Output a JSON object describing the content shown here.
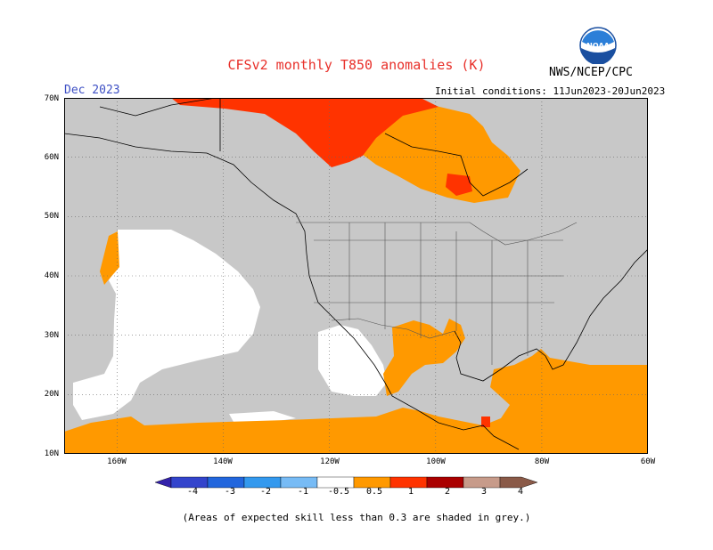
{
  "header": {
    "title": "CFSv2 monthly T850 anomalies (K)",
    "month": "Dec 2023",
    "initial_conditions": "Initial conditions: 11Jun2023-20Jun2023",
    "agency": "NWS/NCEP/CPC",
    "logo_text": "NOAA"
  },
  "map": {
    "extent": {
      "lon": [
        -170,
        -60
      ],
      "lat": [
        10,
        70
      ]
    },
    "y_ticks": [
      "70N",
      "60N",
      "50N",
      "40N",
      "30N",
      "20N",
      "10N"
    ],
    "x_ticks": [
      "160W",
      "140W",
      "120W",
      "100W",
      "80W",
      "60W"
    ],
    "grey_color": "#c8c8c8"
  },
  "colorbar": {
    "labels": [
      "-4",
      "-3",
      "-2",
      "-1",
      "-0.5",
      "0.5",
      "1",
      "2",
      "3",
      "4"
    ],
    "colors": [
      "#3322aa",
      "#3344cc",
      "#2266dd",
      "#3399ee",
      "#77bbf5",
      "#ffffff",
      "#ff9900",
      "#ff3300",
      "#aa0000",
      "#c79b8a",
      "#8a5a48"
    ]
  },
  "footer": {
    "note": "(Areas of expected skill less than 0.3 are shaded in grey.)"
  }
}
